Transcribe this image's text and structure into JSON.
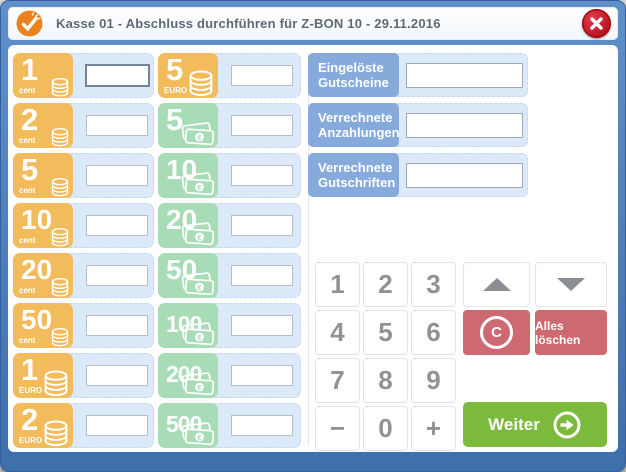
{
  "titlebar": {
    "title": "Kasse 01 - Abschluss durchführen für Z-BON 10 - 29.11.2016"
  },
  "colors": {
    "frame_blue": "#4a7cb9",
    "tile_orange": "#f2bb5c",
    "tile_green": "#a7dcb6",
    "panel_blue": "#dbe9f8",
    "label_blue": "#85aadb",
    "button_red": "#cd6a71",
    "button_green": "#7cba3d",
    "close_red": "#b5121f"
  },
  "denominations": {
    "coins": [
      {
        "value": "1",
        "unit": "cent",
        "kind": "coin",
        "color": "orange",
        "input_value": "",
        "focused": true
      },
      {
        "value": "2",
        "unit": "cent",
        "kind": "coin",
        "color": "orange",
        "input_value": ""
      },
      {
        "value": "5",
        "unit": "cent",
        "kind": "coin",
        "color": "orange",
        "input_value": ""
      },
      {
        "value": "10",
        "unit": "cent",
        "kind": "coin",
        "color": "orange",
        "input_value": ""
      },
      {
        "value": "20",
        "unit": "cent",
        "kind": "coin",
        "color": "orange",
        "input_value": ""
      },
      {
        "value": "50",
        "unit": "cent",
        "kind": "coin",
        "color": "orange",
        "input_value": ""
      },
      {
        "value": "1",
        "unit": "EURO",
        "kind": "coin",
        "color": "orange",
        "input_value": ""
      },
      {
        "value": "2",
        "unit": "EURO",
        "kind": "coin",
        "color": "orange",
        "input_value": ""
      }
    ],
    "notes": [
      {
        "value": "5",
        "unit": "EURO",
        "kind": "coin",
        "color": "orange",
        "input_value": ""
      },
      {
        "value": "5",
        "kind": "note",
        "color": "green",
        "input_value": ""
      },
      {
        "value": "10",
        "kind": "note",
        "color": "green",
        "input_value": ""
      },
      {
        "value": "20",
        "kind": "note",
        "color": "green",
        "input_value": ""
      },
      {
        "value": "50",
        "kind": "note",
        "color": "green",
        "input_value": ""
      },
      {
        "value": "100",
        "kind": "note",
        "color": "green",
        "input_value": ""
      },
      {
        "value": "200",
        "kind": "note",
        "color": "green",
        "input_value": ""
      },
      {
        "value": "500",
        "kind": "note",
        "color": "green",
        "input_value": ""
      }
    ]
  },
  "vouchers": [
    {
      "line1": "Eingelöste",
      "line2": "Gutscheine",
      "input_value": ""
    },
    {
      "line1": "Verrechnete",
      "line2": "Anzahlungen",
      "input_value": ""
    },
    {
      "line1": "Verrechnete",
      "line2": "Gutschriften",
      "input_value": ""
    }
  ],
  "numpad": {
    "keys": [
      "1",
      "2",
      "3",
      "4",
      "5",
      "6",
      "7",
      "8",
      "9",
      "−",
      "0",
      "+"
    ]
  },
  "actions": {
    "clear": "C",
    "clear_all": "Alles löschen",
    "next": "Weiter"
  }
}
